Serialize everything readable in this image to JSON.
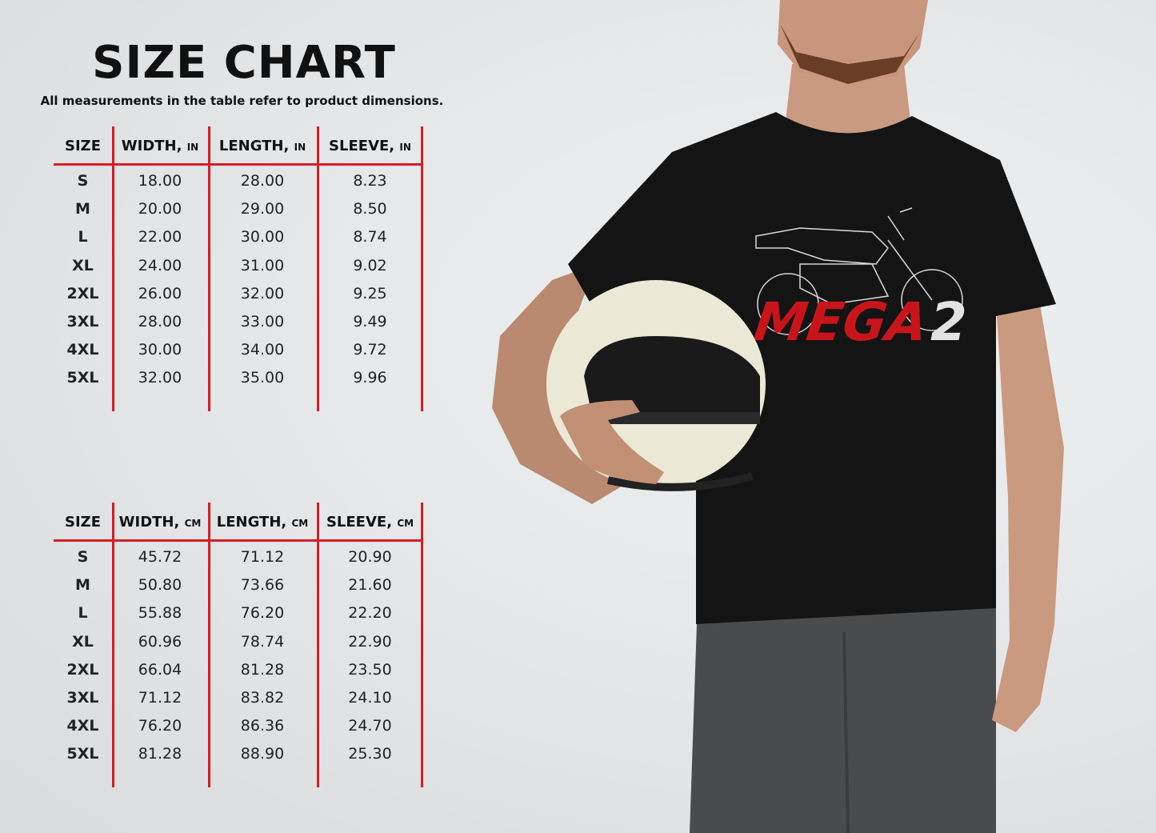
{
  "title": "SIZE CHART",
  "subtitle": "All measurements in the table refer to product dimensions.",
  "colors": {
    "accent": "#d81e24",
    "shirt_text_red": "#c8151b",
    "shirt": "#141414"
  },
  "shirt_graphic": {
    "word": "MEGA",
    "number": "2"
  },
  "tables": [
    {
      "headers": [
        {
          "label": "SIZE",
          "unit": ""
        },
        {
          "label": "WIDTH,",
          "unit": "IN"
        },
        {
          "label": "LENGTH,",
          "unit": "IN"
        },
        {
          "label": "SLEEVE,",
          "unit": "IN"
        }
      ],
      "rows": [
        [
          "S",
          "18.00",
          "28.00",
          "8.23"
        ],
        [
          "M",
          "20.00",
          "29.00",
          "8.50"
        ],
        [
          "L",
          "22.00",
          "30.00",
          "8.74"
        ],
        [
          "XL",
          "24.00",
          "31.00",
          "9.02"
        ],
        [
          "2XL",
          "26.00",
          "32.00",
          "9.25"
        ],
        [
          "3XL",
          "28.00",
          "33.00",
          "9.49"
        ],
        [
          "4XL",
          "30.00",
          "34.00",
          "9.72"
        ],
        [
          "5XL",
          "32.00",
          "35.00",
          "9.96"
        ]
      ]
    },
    {
      "headers": [
        {
          "label": "SIZE",
          "unit": ""
        },
        {
          "label": "WIDTH,",
          "unit": "CM"
        },
        {
          "label": "LENGTH,",
          "unit": "CM"
        },
        {
          "label": "SLEEVE,",
          "unit": "CM"
        }
      ],
      "rows": [
        [
          "S",
          "45.72",
          "71.12",
          "20.90"
        ],
        [
          "M",
          "50.80",
          "73.66",
          "21.60"
        ],
        [
          "L",
          "55.88",
          "76.20",
          "22.20"
        ],
        [
          "XL",
          "60.96",
          "78.74",
          "22.90"
        ],
        [
          "2XL",
          "66.04",
          "81.28",
          "23.50"
        ],
        [
          "3XL",
          "71.12",
          "83.82",
          "24.10"
        ],
        [
          "4XL",
          "76.20",
          "86.36",
          "24.70"
        ],
        [
          "5XL",
          "81.28",
          "88.90",
          "25.30"
        ]
      ]
    }
  ]
}
